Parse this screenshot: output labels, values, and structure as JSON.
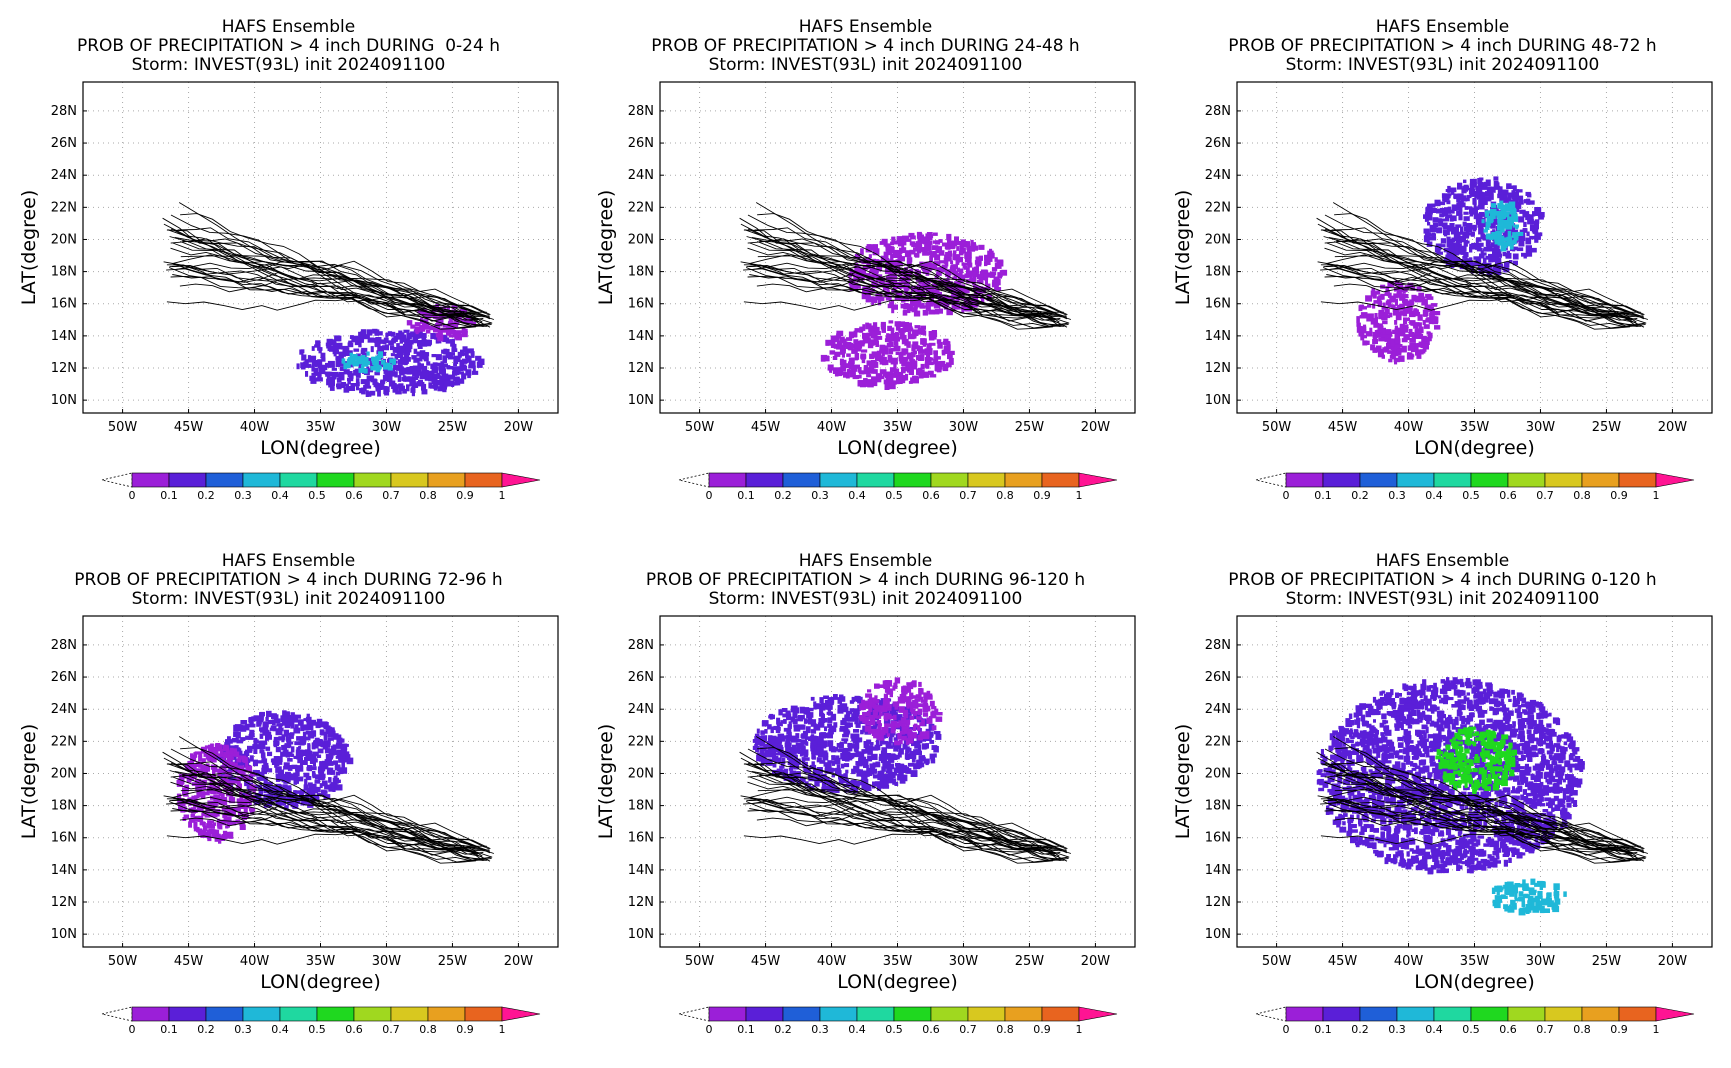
{
  "common": {
    "title": "HAFS Ensemble",
    "storm_line": "Storm: INVEST(93L) init 2024091100",
    "xlabel": "LON(degree)",
    "ylabel": "LAT(degree)",
    "lat_ticks": [
      "28N",
      "26N",
      "24N",
      "22N",
      "20N",
      "18N",
      "16N",
      "14N",
      "12N",
      "10N"
    ],
    "lon_ticks": [
      "50W",
      "45W",
      "40W",
      "35W",
      "30W",
      "25W",
      "20W"
    ],
    "colorbar": {
      "labels": [
        "0",
        "0.1",
        "0.2",
        "0.3",
        "0.4",
        "0.5",
        "0.6",
        "0.7",
        "0.8",
        "0.9",
        "1"
      ],
      "colors": [
        "#9b1fd8",
        "#5a1fd8",
        "#1f5fd8",
        "#1fb8d8",
        "#1fd8a0",
        "#1fd81f",
        "#a0d81f",
        "#d8c81f",
        "#e8a01f",
        "#e8641f",
        "#e81f1f"
      ],
      "over_color": "#ff1493"
    }
  },
  "panels": [
    {
      "name": "panel-0-24h",
      "title2": "PROB OF PRECIPITATION > 4 inch DURING  0-24 h"
    },
    {
      "name": "panel-24-48h",
      "title2": "PROB OF PRECIPITATION > 4 inch DURING 24-48 h"
    },
    {
      "name": "panel-48-72h",
      "title2": "PROB OF PRECIPITATION > 4 inch DURING 48-72 h"
    },
    {
      "name": "panel-72-96h",
      "title2": "PROB OF PRECIPITATION > 4 inch DURING 72-96 h"
    },
    {
      "name": "panel-96-120h",
      "title2": "PROB OF PRECIPITATION > 4 inch DURING 96-120 h"
    },
    {
      "name": "panel-0-120h",
      "title2": "PROB OF PRECIPITATION > 4 inch DURING 0-120 h"
    }
  ],
  "chart_data": {
    "type": "heatmap",
    "xlim_lon_west": [
      53,
      17
    ],
    "ylim_lat_north": [
      9.2,
      29.8
    ],
    "tracks_start": {
      "lon_w": 22.5,
      "lat_n": 15.0
    },
    "precip_regions": [
      [
        {
          "lon_w": 30,
          "lat_n": 12.5,
          "rx": 7,
          "ry": 2,
          "prob": 0.1
        },
        {
          "lon_w": 31.5,
          "lat_n": 12.5,
          "rx": 2,
          "ry": 0.6,
          "prob": 0.3
        },
        {
          "lon_w": 26,
          "lat_n": 15,
          "rx": 2.5,
          "ry": 1,
          "prob": 0.05
        }
      ],
      [
        {
          "lon_w": 33,
          "lat_n": 18,
          "rx": 6,
          "ry": 2.5,
          "prob": 0.05
        },
        {
          "lon_w": 36,
          "lat_n": 13,
          "rx": 5,
          "ry": 2,
          "prob": 0.05
        }
      ],
      [
        {
          "lon_w": 34.5,
          "lat_n": 21,
          "rx": 4.5,
          "ry": 3,
          "prob": 0.1
        },
        {
          "lon_w": 33,
          "lat_n": 21,
          "rx": 1.5,
          "ry": 1.5,
          "prob": 0.3
        },
        {
          "lon_w": 41,
          "lat_n": 15,
          "rx": 3,
          "ry": 2.5,
          "prob": 0.05
        }
      ],
      [
        {
          "lon_w": 38,
          "lat_n": 21,
          "rx": 5,
          "ry": 3,
          "prob": 0.1
        },
        {
          "lon_w": 43,
          "lat_n": 19,
          "rx": 3,
          "ry": 3,
          "prob": 0.05
        }
      ],
      [
        {
          "lon_w": 39,
          "lat_n": 22,
          "rx": 7,
          "ry": 3,
          "prob": 0.1
        },
        {
          "lon_w": 35,
          "lat_n": 24,
          "rx": 3,
          "ry": 2,
          "prob": 0.05
        }
      ],
      [
        {
          "lon_w": 37,
          "lat_n": 20,
          "rx": 10,
          "ry": 6,
          "prob": 0.1
        },
        {
          "lon_w": 35,
          "lat_n": 21,
          "rx": 3,
          "ry": 2,
          "prob": 0.5
        },
        {
          "lon_w": 31,
          "lat_n": 12.5,
          "rx": 3,
          "ry": 1,
          "prob": 0.3
        }
      ]
    ]
  }
}
